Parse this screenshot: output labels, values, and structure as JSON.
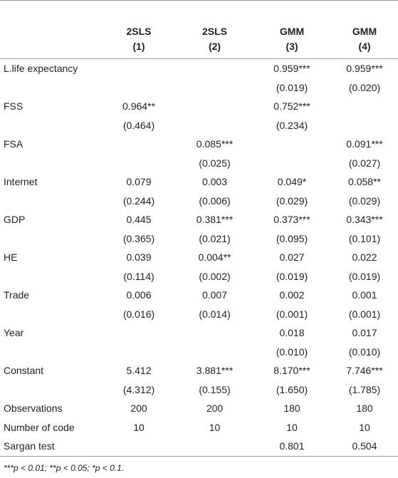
{
  "table": {
    "columns": [
      {
        "method": "2SLS",
        "number": "(1)"
      },
      {
        "method": "2SLS",
        "number": "(2)"
      },
      {
        "method": "GMM",
        "number": "(3)"
      },
      {
        "method": "GMM",
        "number": "(4)"
      }
    ],
    "rows": [
      {
        "label": "L.life expectancy",
        "values": [
          null,
          null,
          "0.959***",
          "0.959***"
        ],
        "se": [
          null,
          null,
          "(0.019)",
          "(0.020)"
        ]
      },
      {
        "label": "FSS",
        "values": [
          "0.964**",
          null,
          "0.752***",
          null
        ],
        "se": [
          "(0.464)",
          null,
          "(0.234)",
          null
        ]
      },
      {
        "label": "FSA",
        "values": [
          null,
          "0.085***",
          null,
          "0.091***"
        ],
        "se": [
          null,
          "(0.025)",
          null,
          "(0.027)"
        ]
      },
      {
        "label": "Internet",
        "values": [
          "0.079",
          "0.003",
          "0.049*",
          "0.058**"
        ],
        "se": [
          "(0.244)",
          "(0.006)",
          "(0.029)",
          "(0.029)"
        ]
      },
      {
        "label": "GDP",
        "values": [
          "0.445",
          "0.381***",
          "0.373***",
          "0.343***"
        ],
        "se": [
          "(0.365)",
          "(0.021)",
          "(0.095)",
          "(0.101)"
        ]
      },
      {
        "label": "HE",
        "values": [
          "0.039",
          "0.004**",
          "0.027",
          "0.022"
        ],
        "se": [
          "(0.114)",
          "(0.002)",
          "(0.019)",
          "(0.019)"
        ]
      },
      {
        "label": "Trade",
        "values": [
          "0.006",
          "0.007",
          "0.002",
          "0.001"
        ],
        "se": [
          "(0.016)",
          "(0.014)",
          "(0.001)",
          "(0.001)"
        ]
      },
      {
        "label": "Year",
        "values": [
          null,
          null,
          "0.018",
          "0.017"
        ],
        "se": [
          null,
          null,
          "(0.010)",
          "(0.010)"
        ]
      },
      {
        "label": "Constant",
        "values": [
          "5.412",
          "3.881***",
          "8.170***",
          "7.746***"
        ],
        "se": [
          "(4.312)",
          "(0.155)",
          "(1.650)",
          "(1.785)"
        ]
      },
      {
        "label": "Observations",
        "values": [
          "200",
          "200",
          "180",
          "180"
        ]
      },
      {
        "label": "Number of code",
        "values": [
          "10",
          "10",
          "10",
          "10"
        ]
      },
      {
        "label": "Sargan test",
        "values": [
          null,
          null,
          "0.801",
          "0.504"
        ]
      }
    ]
  },
  "footnote": "***p < 0.01; **p < 0.05; *p < 0.1."
}
